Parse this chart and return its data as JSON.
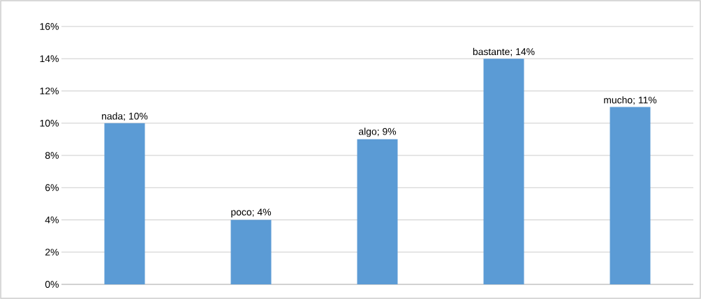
{
  "chart_data": {
    "type": "bar",
    "categories": [
      null,
      null,
      null,
      null,
      null
    ],
    "values": [
      10,
      4,
      9,
      14,
      11
    ],
    "value_labels": [
      "nada; 10%",
      "poco; 4%",
      "algo; 9%",
      "bastante; 14%",
      "mucho; 11%"
    ],
    "color": "#5b9bd5",
    "ylim": [
      0,
      16
    ],
    "yticks": [
      {
        "value": 0,
        "label": "0%"
      },
      {
        "value": 2,
        "label": "2%"
      },
      {
        "value": 4,
        "label": "4%"
      },
      {
        "value": 6,
        "label": "6%"
      },
      {
        "value": 8,
        "label": "8%"
      },
      {
        "value": 10,
        "label": "10%"
      },
      {
        "value": 12,
        "label": "12%"
      },
      {
        "value": 14,
        "label": "14%"
      },
      {
        "value": 16,
        "label": "16%"
      }
    ],
    "grid": "y"
  }
}
